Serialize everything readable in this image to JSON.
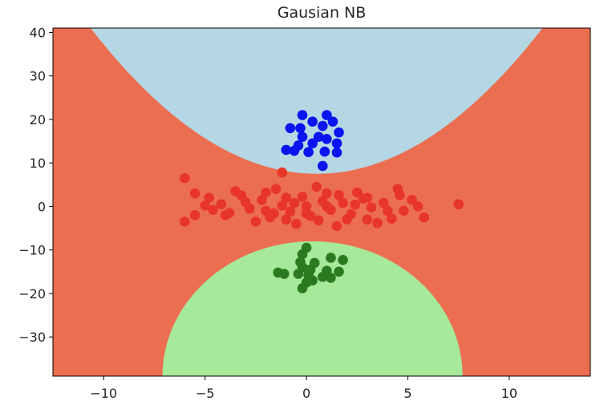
{
  "chart_data": {
    "type": "scatter",
    "title": "Gausian NB",
    "xlabel": "",
    "ylabel": "",
    "xlim": [
      -12.5,
      14
    ],
    "ylim": [
      -39,
      41
    ],
    "xticks": [
      -10,
      -5,
      0,
      5,
      10
    ],
    "yticks": [
      40,
      30,
      20,
      10,
      0,
      -10,
      -20,
      -30
    ],
    "xtick_labels": [
      "−10",
      "−5",
      "0",
      "5",
      "10"
    ],
    "ytick_labels": [
      "40",
      "30",
      "20",
      "10",
      "0",
      "−10",
      "−20",
      "−30"
    ],
    "grid": false,
    "colors": {
      "background_region": "#ec6e51",
      "upper_region": "#b5d7e4",
      "lower_region": "#a6e99b",
      "blue_points": "#0a14f0",
      "red_points": "#e8352a",
      "green_points": "#2b7a1f"
    },
    "regions": [
      {
        "class": "upper",
        "shape": "parabola",
        "vertex": [
          0.5,
          7.5
        ],
        "curvature": 0.27
      },
      {
        "class": "lower",
        "shape": "ellipse",
        "center": [
          0.3,
          -39
        ],
        "semi_axes": [
          7.4,
          31
        ]
      }
    ],
    "series": [
      {
        "class": "blue",
        "points": [
          [
            -0.2,
            21
          ],
          [
            1.0,
            21
          ],
          [
            0.3,
            19.5
          ],
          [
            -0.8,
            18
          ],
          [
            -0.3,
            18
          ],
          [
            0.8,
            18.5
          ],
          [
            1.3,
            19.5
          ],
          [
            1.6,
            17
          ],
          [
            0.6,
            16
          ],
          [
            -0.2,
            16
          ],
          [
            1.0,
            15.5
          ],
          [
            1.5,
            14.5
          ],
          [
            -0.4,
            14
          ],
          [
            0.3,
            14.5
          ],
          [
            -1.0,
            13
          ],
          [
            -0.6,
            12.8
          ],
          [
            0.1,
            12.5
          ],
          [
            0.9,
            12.6
          ],
          [
            1.5,
            12.4
          ],
          [
            0.8,
            9.3
          ]
        ]
      },
      {
        "class": "red",
        "points": [
          [
            -6,
            6.5
          ],
          [
            -1.2,
            7.8
          ],
          [
            7.5,
            0.5
          ],
          [
            -5.5,
            3
          ],
          [
            -4.8,
            2
          ],
          [
            -6,
            -3.5
          ],
          [
            -5.5,
            -2
          ],
          [
            5.5,
            0
          ],
          [
            5.8,
            -2.5
          ],
          [
            4.5,
            4
          ],
          [
            4.0,
            -1
          ],
          [
            3,
            2
          ],
          [
            2,
            -3
          ],
          [
            1,
            3
          ],
          [
            0,
            0
          ],
          [
            -1,
            2
          ],
          [
            -2,
            -1
          ],
          [
            -3,
            1
          ],
          [
            -4,
            -2
          ],
          [
            -3.5,
            3.5
          ],
          [
            -2.5,
            -3.5
          ],
          [
            -1.5,
            4
          ],
          [
            -0.5,
            -4
          ],
          [
            0.5,
            4.5
          ],
          [
            1.5,
            -4.5
          ],
          [
            2.5,
            3.2
          ],
          [
            3.5,
            -3.8
          ],
          [
            4.8,
            -1
          ],
          [
            -4.2,
            0.5
          ],
          [
            -3.8,
            -1.5
          ],
          [
            -3.2,
            2.5
          ],
          [
            -2.8,
            -0.5
          ],
          [
            -2.2,
            1.5
          ],
          [
            -1.8,
            -2.5
          ],
          [
            -1.2,
            0.2
          ],
          [
            -0.8,
            -1.2
          ],
          [
            -0.2,
            2.2
          ],
          [
            0.2,
            -2.2
          ],
          [
            0.8,
            1.2
          ],
          [
            1.2,
            -0.8
          ],
          [
            1.8,
            0.8
          ],
          [
            2.2,
            -1.8
          ],
          [
            2.8,
            1.8
          ],
          [
            3.2,
            -0.2
          ],
          [
            3.8,
            0.8
          ],
          [
            4.2,
            -2.8
          ],
          [
            4.6,
            2.6
          ],
          [
            5.2,
            1.5
          ],
          [
            -4.6,
            -0.8
          ],
          [
            -5.0,
            0.2
          ],
          [
            -1.0,
            -3.0
          ],
          [
            0.6,
            -3.2
          ],
          [
            1.6,
            2.6
          ],
          [
            2.4,
            0.4
          ],
          [
            -0.6,
            0.8
          ],
          [
            -1.6,
            -1.6
          ],
          [
            3.0,
            -3.0
          ],
          [
            -2.0,
            3.2
          ],
          [
            0.0,
            -1.6
          ],
          [
            1.0,
            0.0
          ]
        ]
      },
      {
        "class": "green",
        "points": [
          [
            0,
            -9.5
          ],
          [
            -0.2,
            -11
          ],
          [
            1.2,
            -11.8
          ],
          [
            1.8,
            -12.3
          ],
          [
            -0.3,
            -12.8
          ],
          [
            0.4,
            -13
          ],
          [
            -0.2,
            -14
          ],
          [
            0.2,
            -14.5
          ],
          [
            1.0,
            -14.8
          ],
          [
            1.6,
            -15
          ],
          [
            -1.4,
            -15.2
          ],
          [
            -1.1,
            -15.5
          ],
          [
            -0.4,
            -15.5
          ],
          [
            0.1,
            -15.8
          ],
          [
            0.8,
            -16.2
          ],
          [
            1.2,
            -16.4
          ],
          [
            0.3,
            -17
          ],
          [
            0.0,
            -17.5
          ],
          [
            -0.2,
            -18.8
          ]
        ]
      }
    ]
  }
}
